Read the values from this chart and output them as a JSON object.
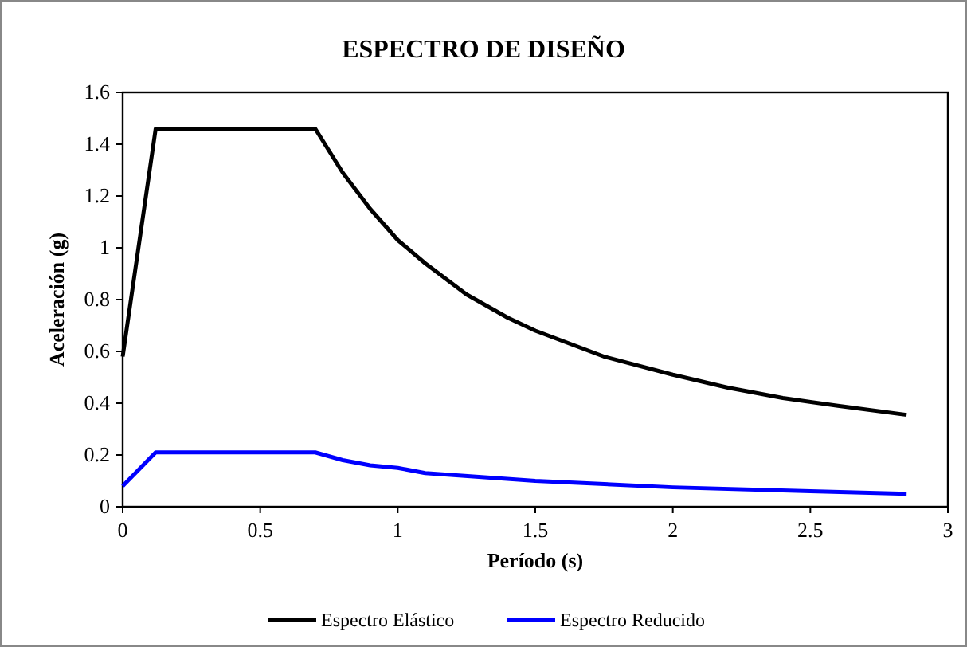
{
  "chart_data": {
    "type": "line",
    "title": "ESPECTRO DE DISEÑO",
    "xlabel": "Período (s)",
    "ylabel": "Aceleración (g)",
    "xlim": [
      0,
      3
    ],
    "xticks": [
      0,
      0.5,
      1,
      1.5,
      2,
      2.5,
      3
    ],
    "ylim": [
      0,
      1.6
    ],
    "yticks": [
      0,
      0.2,
      0.4,
      0.6,
      0.8,
      1,
      1.2,
      1.4,
      1.6
    ],
    "grid": false,
    "legend": "bottom",
    "marker": "none",
    "line_style": "solid",
    "series": [
      {
        "name": "Espectro Elástico",
        "color": "#000000",
        "x": [
          0,
          0.12,
          0.7,
          0.8,
          0.9,
          1.0,
          1.1,
          1.25,
          1.4,
          1.5,
          1.75,
          2.0,
          2.2,
          2.4,
          2.6,
          2.85
        ],
        "values": [
          0.58,
          1.46,
          1.46,
          1.29,
          1.15,
          1.03,
          0.94,
          0.82,
          0.73,
          0.68,
          0.58,
          0.51,
          0.46,
          0.42,
          0.39,
          0.355
        ]
      },
      {
        "name": "Espectro Reducido",
        "color": "#0000ff",
        "x": [
          0,
          0.12,
          0.7,
          0.8,
          0.9,
          1.0,
          1.1,
          1.5,
          2.0,
          2.5,
          2.85
        ],
        "values": [
          0.08,
          0.21,
          0.21,
          0.18,
          0.16,
          0.15,
          0.13,
          0.1,
          0.075,
          0.06,
          0.05
        ]
      }
    ]
  }
}
